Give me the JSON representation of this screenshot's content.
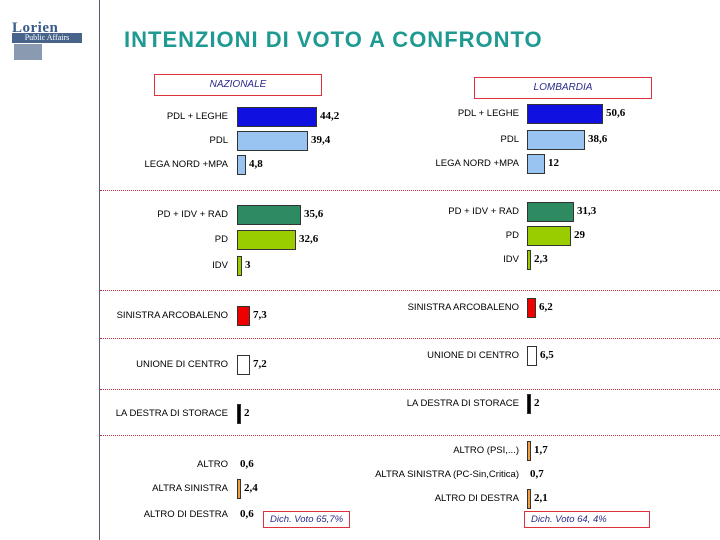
{
  "title": "INTENZIONI DI VOTO A CONFRONTO",
  "logo": {
    "top": "Lorien",
    "bottom": "Public Affairs"
  },
  "chart_data": [
    {
      "type": "bar",
      "title": "NAZIONALE",
      "orientation": "horizontal",
      "note": "Dich. Voto 65,7%",
      "rows": [
        {
          "label": "PDL + LEGHE",
          "value": 44.2,
          "display": "44,2",
          "color": "#1010e0"
        },
        {
          "label": "PDL",
          "value": 39.4,
          "display": "39,4",
          "color": "#99c4f2"
        },
        {
          "label": "LEGA NORD +MPA",
          "value": 4.8,
          "display": "4,8",
          "color": "#99c4f2"
        },
        {
          "label": "PD + IDV + RAD",
          "value": 35.6,
          "display": "35,6",
          "color": "#2e8b61"
        },
        {
          "label": "PD",
          "value": 32.6,
          "display": "32,6",
          "color": "#9acd00"
        },
        {
          "label": "IDV",
          "value": 3,
          "display": "3",
          "color": "#9acd00"
        },
        {
          "label": "SINISTRA ARCOBALENO",
          "value": 7.3,
          "display": "7,3",
          "color": "#ee0000"
        },
        {
          "label": "UNIONE DI CENTRO",
          "value": 7.2,
          "display": "7,2",
          "color": "#ffffff"
        },
        {
          "label": "LA DESTRA DI STORACE",
          "value": 2,
          "display": "2",
          "color": "#000000"
        },
        {
          "label": "ALTRO",
          "value": 0.6,
          "display": "0,6",
          "color": "#f0a040"
        },
        {
          "label": "ALTRA SINISTRA",
          "value": 2.4,
          "display": "2,4",
          "color": "#f0a040"
        },
        {
          "label": "ALTRO DI DESTRA",
          "value": 0.6,
          "display": "0,6",
          "color": "#f0a040"
        }
      ]
    },
    {
      "type": "bar",
      "title": "LOMBARDIA",
      "orientation": "horizontal",
      "note": "Dich. Voto 64, 4%",
      "rows": [
        {
          "label": "PDL + LEGHE",
          "value": 50.6,
          "display": "50,6",
          "color": "#1010e0"
        },
        {
          "label": "PDL",
          "value": 38.6,
          "display": "38,6",
          "color": "#99c4f2"
        },
        {
          "label": "LEGA NORD +MPA",
          "value": 12,
          "display": "12",
          "color": "#99c4f2"
        },
        {
          "label": "PD + IDV + RAD",
          "value": 31.3,
          "display": "31,3",
          "color": "#2e8b61"
        },
        {
          "label": "PD",
          "value": 29,
          "display": "29",
          "color": "#9acd00"
        },
        {
          "label": "IDV",
          "value": 2.3,
          "display": "2,3",
          "color": "#9acd00"
        },
        {
          "label": "SINISTRA ARCOBALENO",
          "value": 6.2,
          "display": "6,2",
          "color": "#ee0000"
        },
        {
          "label": "UNIONE DI CENTRO",
          "value": 6.5,
          "display": "6,5",
          "color": "#ffffff"
        },
        {
          "label": "LA DESTRA DI STORACE",
          "value": 2,
          "display": "2",
          "color": "#000000"
        },
        {
          "label": "ALTRO (PSI,...)",
          "value": 1.7,
          "display": "1,7",
          "color": "#f0a040"
        },
        {
          "label": "ALTRA SINISTRA (PC-Sin,Critica)",
          "value": 0.7,
          "display": "0,7",
          "color": "#f0a040"
        },
        {
          "label": "ALTRO DI DESTRA",
          "value": 2.1,
          "display": "2,1",
          "color": "#f0a040"
        }
      ]
    }
  ]
}
